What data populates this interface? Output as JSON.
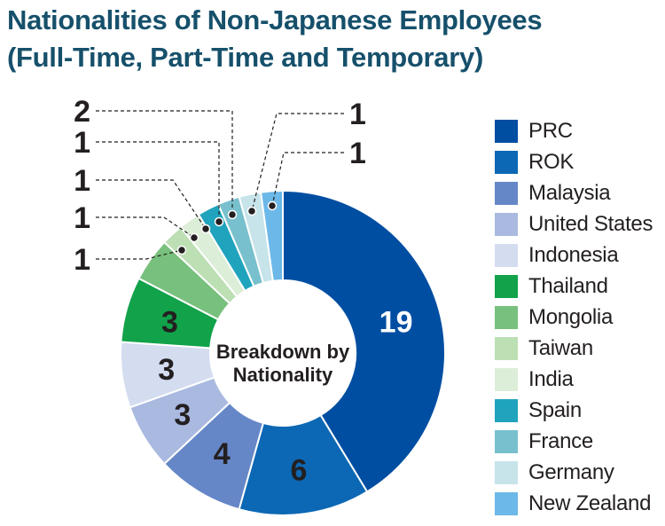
{
  "title_line1": "Nationalities of Non-Japanese Employees",
  "title_line2": "(Full-Time, Part-Time and Temporary)",
  "chart_data": {
    "type": "pie",
    "variant": "donut",
    "center_label": [
      "Breakdown by",
      "Nationality"
    ],
    "legend_position": "right",
    "categories": [
      "PRC",
      "ROK",
      "Malaysia",
      "United States",
      "Indonesia",
      "Thailand",
      "Mongolia",
      "Taiwan",
      "India",
      "Spain",
      "France",
      "Germany",
      "New Zealand"
    ],
    "values": [
      19,
      6,
      4,
      3,
      3,
      3,
      2,
      1,
      1,
      1,
      1,
      1,
      1
    ],
    "colors": [
      "#004ea2",
      "#0c68b4",
      "#6687c7",
      "#a9b9e0",
      "#d4dcf0",
      "#11a24a",
      "#78c07d",
      "#bcdfb3",
      "#ddeed8",
      "#20a3bd",
      "#78c0cd",
      "#c6e4ea",
      "#6cb8e8"
    ],
    "label_colors": [
      "#ffffff",
      "#231f20",
      "#231f20",
      "#231f20",
      "#231f20",
      "#231f20",
      "#231f20",
      "#231f20",
      "#231f20",
      "#231f20",
      "#231f20",
      "#231f20",
      "#231f20"
    ]
  }
}
